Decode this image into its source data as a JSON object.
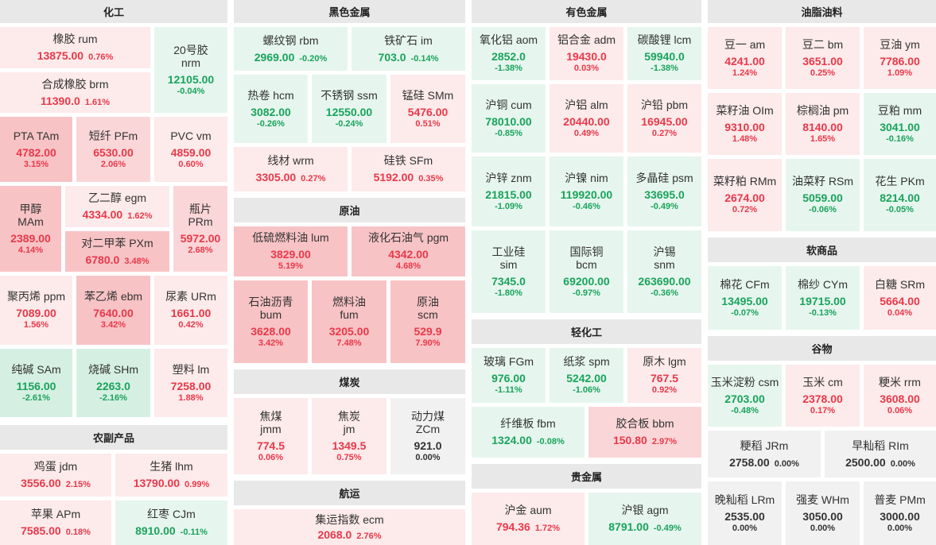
{
  "colors": {
    "up": "#e8394a",
    "down": "#1aa35c",
    "flat": "#333333"
  },
  "sections": {
    "chem": "化工",
    "ferrous": "黑色金属",
    "nonferrous": "有色金属",
    "oils": "油脂油料",
    "agri": "农副产品",
    "crude": "原油",
    "coal": "煤炭",
    "shipping": "航运",
    "light": "轻化工",
    "precious": "贵金属",
    "soft": "软商品",
    "grain": "谷物"
  },
  "items": {
    "rum": {
      "name": "橡胶 rum",
      "value": "13875.00",
      "change": "0.76%"
    },
    "nrm": {
      "name": "20号胶",
      "code": "nrm",
      "value": "12105.00",
      "change": "-0.04%"
    },
    "brm": {
      "name": "合成橡胶 brm",
      "value": "11390.0",
      "change": "1.61%"
    },
    "tam": {
      "name": "PTA TAm",
      "value": "4782.00",
      "change": "3.15%"
    },
    "pfm": {
      "name": "短纤 PFm",
      "value": "6530.00",
      "change": "2.06%"
    },
    "vm": {
      "name": "PVC vm",
      "value": "4859.00",
      "change": "0.60%"
    },
    "mam": {
      "name": "甲醇",
      "code": "MAm",
      "value": "2389.00",
      "change": "4.14%"
    },
    "egm": {
      "name": "乙二醇 egm",
      "value": "4334.00",
      "change": "1.62%"
    },
    "pxm": {
      "name": "对二甲苯 PXm",
      "value": "6780.0",
      "change": "3.48%"
    },
    "prm": {
      "name": "瓶片",
      "code": "PRm",
      "value": "5972.00",
      "change": "2.68%"
    },
    "ppm": {
      "name": "聚丙烯 ppm",
      "value": "7089.00",
      "change": "1.56%"
    },
    "ebm": {
      "name": "苯乙烯 ebm",
      "value": "7640.00",
      "change": "3.42%"
    },
    "urm": {
      "name": "尿素 URm",
      "value": "1661.00",
      "change": "0.42%"
    },
    "sam": {
      "name": "纯碱 SAm",
      "value": "1156.00",
      "change": "-2.61%"
    },
    "shm": {
      "name": "烧碱 SHm",
      "value": "2263.0",
      "change": "-2.16%"
    },
    "lm": {
      "name": "塑料 lm",
      "value": "7258.00",
      "change": "1.88%"
    },
    "jdm": {
      "name": "鸡蛋 jdm",
      "value": "3556.00",
      "change": "2.15%"
    },
    "lhm": {
      "name": "生猪 lhm",
      "value": "13790.00",
      "change": "0.99%"
    },
    "apm": {
      "name": "苹果 APm",
      "value": "7585.00",
      "change": "0.18%"
    },
    "cjm": {
      "name": "红枣 CJm",
      "value": "8910.00",
      "change": "-0.11%"
    },
    "rbm": {
      "name": "螺纹钢 rbm",
      "value": "2969.00",
      "change": "-0.20%"
    },
    "im": {
      "name": "铁矿石 im",
      "value": "703.0",
      "change": "-0.14%"
    },
    "hcm": {
      "name": "热卷 hcm",
      "value": "3082.00",
      "change": "-0.26%"
    },
    "ssm": {
      "name": "不锈钢 ssm",
      "value": "12550.00",
      "change": "-0.24%"
    },
    "smm": {
      "name": "锰硅 SMm",
      "value": "5476.00",
      "change": "0.51%"
    },
    "wrm": {
      "name": "线材 wrm",
      "value": "3305.00",
      "change": "0.27%"
    },
    "sfm": {
      "name": "硅铁 SFm",
      "value": "5192.00",
      "change": "0.35%"
    },
    "lum": {
      "name": "低硫燃料油 lum",
      "value": "3829.00",
      "change": "5.19%"
    },
    "pgm": {
      "name": "液化石油气 pgm",
      "value": "4342.00",
      "change": "4.68%"
    },
    "bum": {
      "name": "石油沥青",
      "code": "bum",
      "value": "3628.00",
      "change": "3.42%"
    },
    "fum": {
      "name": "燃料油",
      "code": "fum",
      "value": "3205.00",
      "change": "7.48%"
    },
    "scm": {
      "name": "原油",
      "code": "scm",
      "value": "529.9",
      "change": "7.90%"
    },
    "jmm": {
      "name": "焦煤",
      "code": "jmm",
      "value": "774.5",
      "change": "0.06%"
    },
    "jm": {
      "name": "焦炭",
      "code": "jm",
      "value": "1349.5",
      "change": "0.75%"
    },
    "zcm": {
      "name": "动力煤",
      "code": "ZCm",
      "value": "921.0",
      "change": "0.00%"
    },
    "ecm": {
      "name": "集运指数 ecm",
      "value": "2068.0",
      "change": "2.76%"
    },
    "aom": {
      "name": "氧化铝 aom",
      "value": "2852.0",
      "change": "-1.38%"
    },
    "adm": {
      "name": "铝合金 adm",
      "value": "19430.0",
      "change": "0.03%"
    },
    "lcm": {
      "name": "碳酸锂 lcm",
      "value": "59940.0",
      "change": "-1.38%"
    },
    "cum": {
      "name": "沪铜 cum",
      "value": "78010.00",
      "change": "-0.85%"
    },
    "alm": {
      "name": "沪铝 alm",
      "value": "20440.00",
      "change": "0.49%"
    },
    "pbm": {
      "name": "沪铅 pbm",
      "value": "16945.00",
      "change": "0.27%"
    },
    "znm": {
      "name": "沪锌 znm",
      "value": "21815.00",
      "change": "-1.09%"
    },
    "nim": {
      "name": "沪镍 nim",
      "value": "119920.00",
      "change": "-0.46%"
    },
    "psm": {
      "name": "多晶硅 psm",
      "value": "33695.0",
      "change": "-0.49%"
    },
    "sim": {
      "name": "工业硅",
      "code": "sim",
      "value": "7345.0",
      "change": "-1.80%"
    },
    "bcm": {
      "name": "国际铜",
      "code": "bcm",
      "value": "69200.00",
      "change": "-0.97%"
    },
    "snm": {
      "name": "沪锡",
      "code": "snm",
      "value": "263690.00",
      "change": "-0.36%"
    },
    "fgm": {
      "name": "玻璃 FGm",
      "value": "976.00",
      "change": "-1.11%"
    },
    "spm": {
      "name": "纸浆 spm",
      "value": "5242.00",
      "change": "-1.06%"
    },
    "lgm": {
      "name": "原木 lgm",
      "value": "767.5",
      "change": "0.92%"
    },
    "fbm": {
      "name": "纤维板 fbm",
      "value": "1324.00",
      "change": "-0.08%"
    },
    "bbm": {
      "name": "胶合板 bbm",
      "value": "150.80",
      "change": "2.97%"
    },
    "aum": {
      "name": "沪金 aum",
      "value": "794.36",
      "change": "1.72%"
    },
    "agm": {
      "name": "沪银 agm",
      "value": "8791.00",
      "change": "-0.49%"
    },
    "am": {
      "name": "豆一 am",
      "value": "4241.00",
      "change": "1.24%"
    },
    "bm": {
      "name": "豆二 bm",
      "value": "3651.00",
      "change": "0.25%"
    },
    "ym": {
      "name": "豆油 ym",
      "value": "7786.00",
      "change": "1.09%"
    },
    "olm": {
      "name": "菜籽油 OIm",
      "value": "9310.00",
      "change": "1.48%"
    },
    "pm": {
      "name": "棕榈油 pm",
      "value": "8140.00",
      "change": "1.65%"
    },
    "mm": {
      "name": "豆粕 mm",
      "value": "3041.00",
      "change": "-0.16%"
    },
    "rmm": {
      "name": "菜籽粕 RMm",
      "value": "2674.00",
      "change": "0.72%"
    },
    "rsm": {
      "name": "油菜籽 RSm",
      "value": "5059.00",
      "change": "-0.06%"
    },
    "pkm": {
      "name": "花生 PKm",
      "value": "8214.00",
      "change": "-0.05%"
    },
    "cfm": {
      "name": "棉花 CFm",
      "value": "13495.00",
      "change": "-0.07%"
    },
    "cym": {
      "name": "棉纱 CYm",
      "value": "19715.00",
      "change": "-0.13%"
    },
    "srm": {
      "name": "白糖 SRm",
      "value": "5664.00",
      "change": "0.04%"
    },
    "csm": {
      "name": "玉米淀粉 csm",
      "value": "2703.00",
      "change": "-0.48%"
    },
    "cm": {
      "name": "玉米 cm",
      "value": "2378.00",
      "change": "0.17%"
    },
    "rrm": {
      "name": "粳米 rrm",
      "value": "3608.00",
      "change": "0.06%"
    },
    "jrm": {
      "name": "粳稻 JRm",
      "value": "2758.00",
      "change": "0.00%"
    },
    "rim": {
      "name": "早籼稻 RIm",
      "value": "2500.00",
      "change": "0.00%"
    },
    "lrm": {
      "name": "晚籼稻 LRm",
      "value": "2535.00",
      "change": "0.00%"
    },
    "whm": {
      "name": "强麦 WHm",
      "value": "3050.00",
      "change": "0.00%"
    },
    "pmm": {
      "name": "普麦 PMm",
      "value": "3000.00",
      "change": "0.00%"
    }
  }
}
